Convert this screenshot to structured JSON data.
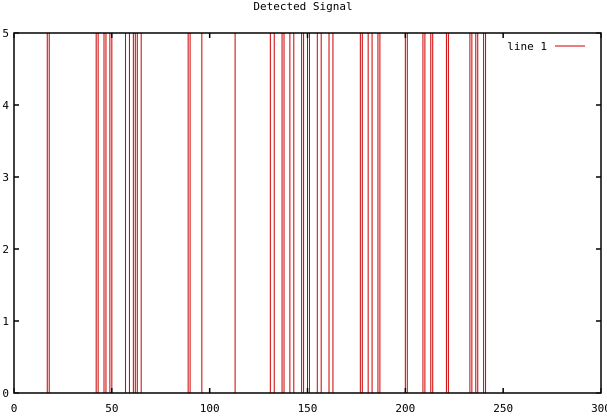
{
  "chart_data": {
    "type": "line",
    "title": "Detected Signal",
    "xlabel": "",
    "ylabel": "",
    "xlim": [
      0,
      300
    ],
    "ylim": [
      0,
      5
    ],
    "xticks": [
      "0",
      "50",
      "100",
      "150",
      "200",
      "250",
      "300"
    ],
    "yticks": [
      "0",
      "1",
      "2",
      "3",
      "4",
      "5"
    ],
    "grid": false,
    "legend_position": "top-right",
    "series": [
      {
        "name": "line 1",
        "color": "#cc0000",
        "start": [
          0,
          5
        ],
        "end_x": 254,
        "transitions": [
          [
            17,
            0
          ],
          [
            18,
            5
          ],
          [
            42,
            0
          ],
          [
            43,
            5
          ],
          [
            46,
            0
          ],
          [
            47,
            5
          ],
          [
            49,
            0
          ],
          [
            50,
            5
          ],
          [
            57,
            0
          ],
          [
            59,
            5
          ],
          [
            61,
            0
          ],
          [
            62,
            5
          ],
          [
            63,
            0
          ],
          [
            65,
            5
          ],
          [
            89,
            0
          ],
          [
            90,
            5
          ],
          [
            96,
            0
          ],
          [
            113,
            5
          ],
          [
            131,
            0
          ],
          [
            133,
            5
          ],
          [
            137,
            0
          ],
          [
            138,
            5
          ],
          [
            141,
            0
          ],
          [
            143,
            5
          ],
          [
            147,
            0
          ],
          [
            148,
            5
          ],
          [
            150,
            0
          ],
          [
            151,
            5
          ],
          [
            155,
            0
          ],
          [
            157,
            5
          ],
          [
            161,
            0
          ],
          [
            163,
            5
          ],
          [
            177,
            0
          ],
          [
            178,
            5
          ],
          [
            181,
            0
          ],
          [
            183,
            5
          ],
          [
            186,
            0
          ],
          [
            187,
            5
          ],
          [
            200,
            0
          ],
          [
            201,
            5
          ],
          [
            209,
            0
          ],
          [
            210,
            5
          ],
          [
            213,
            0
          ],
          [
            214,
            5
          ],
          [
            221,
            0
          ],
          [
            222,
            5
          ],
          [
            233,
            0
          ],
          [
            234,
            5
          ],
          [
            236,
            0
          ],
          [
            237,
            5
          ],
          [
            240,
            0
          ],
          [
            241,
            5
          ]
        ]
      }
    ]
  }
}
